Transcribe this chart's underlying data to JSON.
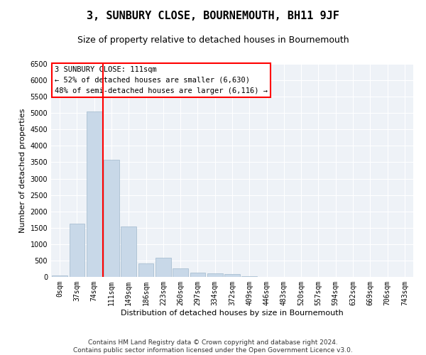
{
  "title": "3, SUNBURY CLOSE, BOURNEMOUTH, BH11 9JF",
  "subtitle": "Size of property relative to detached houses in Bournemouth",
  "xlabel": "Distribution of detached houses by size in Bournemouth",
  "ylabel": "Number of detached properties",
  "footer_line1": "Contains HM Land Registry data © Crown copyright and database right 2024.",
  "footer_line2": "Contains public sector information licensed under the Open Government Licence v3.0.",
  "annotation_title": "3 SUNBURY CLOSE: 111sqm",
  "annotation_line1": "← 52% of detached houses are smaller (6,630)",
  "annotation_line2": "48% of semi-detached houses are larger (6,116) →",
  "bar_color": "#c8d8e8",
  "bar_edge_color": "#a0b8cc",
  "vline_color": "red",
  "vline_x_index": 2,
  "categories": [
    "0sqm",
    "37sqm",
    "74sqm",
    "111sqm",
    "149sqm",
    "186sqm",
    "223sqm",
    "260sqm",
    "297sqm",
    "334sqm",
    "372sqm",
    "409sqm",
    "446sqm",
    "483sqm",
    "520sqm",
    "557sqm",
    "594sqm",
    "632sqm",
    "669sqm",
    "706sqm",
    "743sqm"
  ],
  "values": [
    50,
    1620,
    5050,
    3580,
    1530,
    420,
    580,
    270,
    120,
    100,
    80,
    20,
    10,
    5,
    3,
    2,
    2,
    1,
    1,
    1,
    1
  ],
  "ylim": [
    0,
    6500
  ],
  "yticks": [
    0,
    500,
    1000,
    1500,
    2000,
    2500,
    3000,
    3500,
    4000,
    4500,
    5000,
    5500,
    6000,
    6500
  ],
  "bg_color": "#eef2f7",
  "grid_color": "#ffffff",
  "annotation_box_facecolor": "white",
  "annotation_box_edgecolor": "red",
  "title_fontsize": 11,
  "subtitle_fontsize": 9,
  "axis_label_fontsize": 8,
  "tick_fontsize": 7,
  "annotation_fontsize": 7.5,
  "footer_fontsize": 6.5
}
